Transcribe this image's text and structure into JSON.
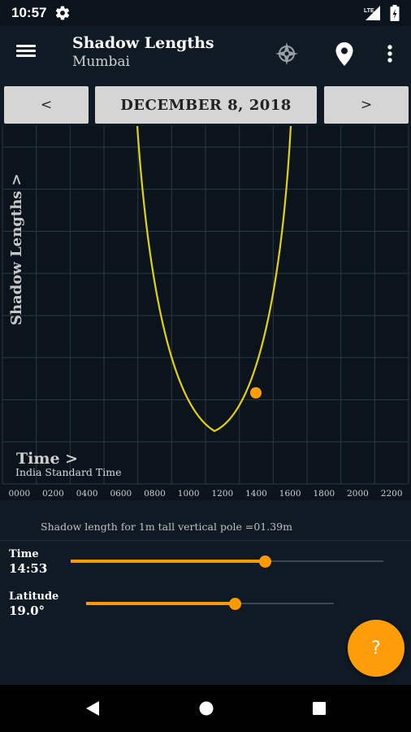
{
  "status": {
    "time": "10:57",
    "network": "LTE"
  },
  "app_bar": {
    "title": "Shadow Lengths",
    "subtitle": "Mumbai"
  },
  "date_nav": {
    "prev_label": "<",
    "date": "DECEMBER 8, 2018",
    "next_label": ">"
  },
  "chart_data": {
    "type": "line",
    "ylabel": "Shadow Lengths >",
    "xlabel": "Time >",
    "x_sublabel": "India Standard Time",
    "x_ticks": [
      "0000",
      "0200",
      "0400",
      "0600",
      "0800",
      "1000",
      "1200",
      "1400",
      "1600",
      "1800",
      "2000",
      "2200"
    ],
    "line_color": "#e3d20c",
    "marker_color": "#ff9c0a",
    "grid": true,
    "marker": {
      "time": "14:53",
      "shadow_length_m": 1.39
    }
  },
  "info": {
    "shadow_text": "Shadow length for 1m tall vertical pole =01.39m"
  },
  "controls": {
    "time": {
      "label": "Time",
      "value": "14:53",
      "fraction": 0.62
    },
    "latitude": {
      "label": "Latitude",
      "value": "19.0°",
      "fraction": 0.6
    }
  },
  "fab": {
    "label": "?"
  },
  "icons": [
    "settings-gear-icon",
    "signal-icon",
    "battery-icon",
    "menu-icon",
    "compass-icon",
    "location-pin-icon",
    "more-vert-icon",
    "back-nav-icon",
    "home-nav-icon",
    "recents-nav-icon"
  ]
}
